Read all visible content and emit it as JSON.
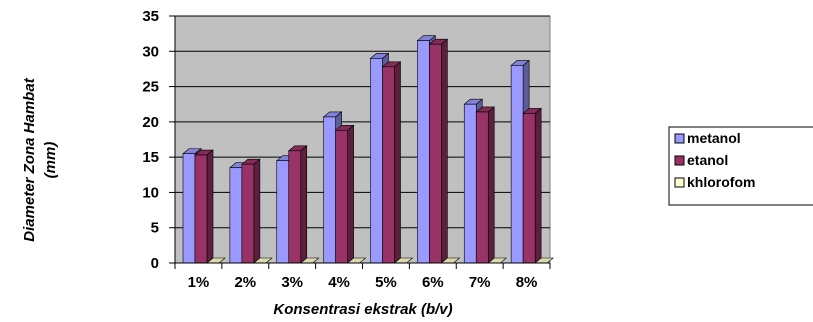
{
  "chart_data": {
    "type": "bar",
    "title": "",
    "xlabel": "Konsentrasi ekstrak  (b/v)",
    "ylabel": "Diameter Zona Hambat (mm)",
    "ylabel_lines": [
      "Diameter Zona Hambat",
      "(mm)"
    ],
    "categories": [
      "1%",
      "2%",
      "3%",
      "4%",
      "5%",
      "6%",
      "7%",
      "8%"
    ],
    "yticks": [
      "0",
      "5",
      "10",
      "15",
      "20",
      "25",
      "30",
      "35"
    ],
    "ylim": [
      0,
      35
    ],
    "grid": true,
    "legend_position": "right",
    "plot_background": "#c0c0c0",
    "series": [
      {
        "name": "metanol",
        "color": "#9999ff",
        "values": [
          15.5,
          13.5,
          14.5,
          20.7,
          29.0,
          31.5,
          22.5,
          28.0
        ]
      },
      {
        "name": "etanol",
        "color": "#993366",
        "values": [
          15.3,
          14.0,
          15.9,
          18.8,
          27.8,
          31.0,
          21.4,
          21.2
        ]
      },
      {
        "name": "khlorofom",
        "color": "#ffffcc",
        "values": [
          0,
          0,
          0,
          0,
          0,
          0,
          0,
          0
        ]
      }
    ]
  }
}
